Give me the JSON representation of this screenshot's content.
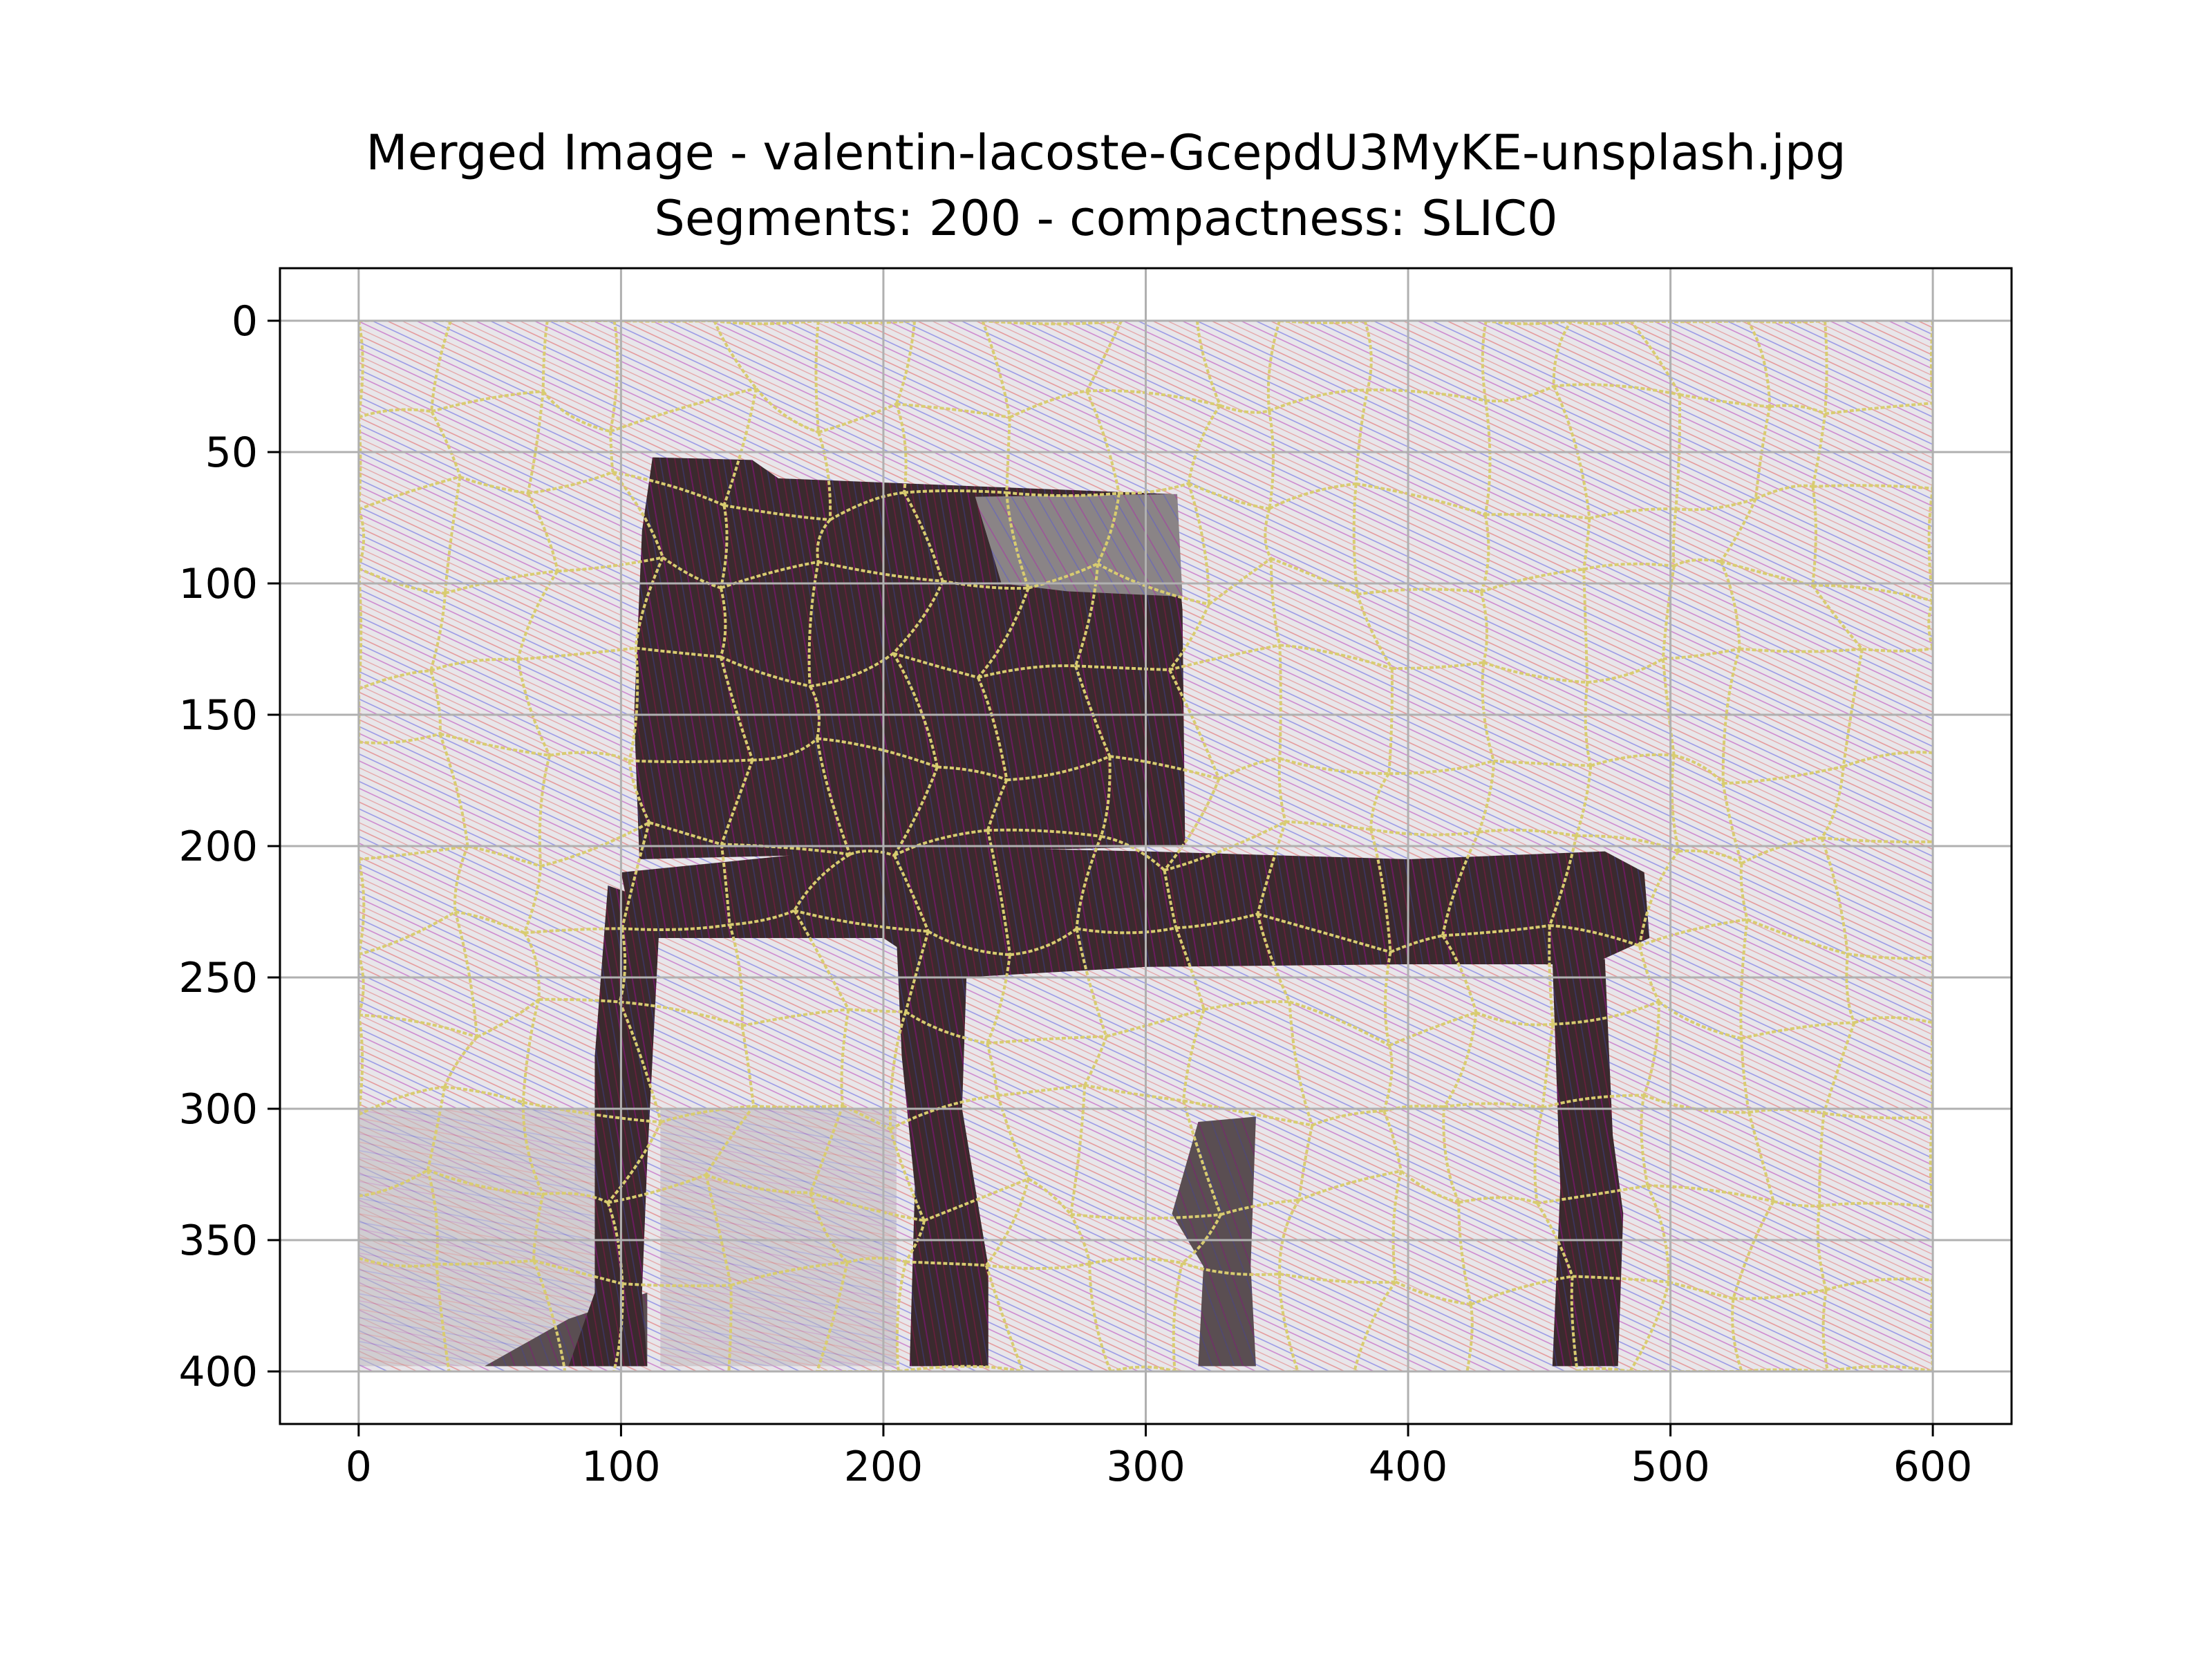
{
  "chart_data": {
    "type": "image",
    "title": "Merged Image - valentin-lacoste-GcepdU3MyKE-unsplash.jpg",
    "subtitle": "Segments: 200 - compactness: SLIC0",
    "xlabel": "",
    "ylabel": "",
    "xlim": [
      -30,
      630
    ],
    "ylim": [
      420,
      -20
    ],
    "image_extent": [
      0,
      600,
      0,
      400
    ],
    "y_inverted": true,
    "grid": true,
    "x_ticks": [
      0,
      100,
      200,
      300,
      400,
      500,
      600
    ],
    "y_ticks": [
      0,
      50,
      100,
      150,
      200,
      250,
      300,
      350,
      400
    ],
    "x_tick_labels": [
      "0",
      "100",
      "200",
      "300",
      "400",
      "500",
      "600"
    ],
    "y_tick_labels": [
      "0",
      "50",
      "100",
      "150",
      "200",
      "250",
      "300",
      "350",
      "400"
    ],
    "colors": {
      "background": "#e8e6ea",
      "chair_dark": "#3b2a2e",
      "chair_mid": "#5a4e52",
      "chair_light": "#8a8486",
      "boundary": "#d8cc70",
      "streak_red": "#e05050",
      "streak_blue": "#5050e0",
      "streak_purple": "#b020b0",
      "grid": "#b0b0b0"
    }
  }
}
